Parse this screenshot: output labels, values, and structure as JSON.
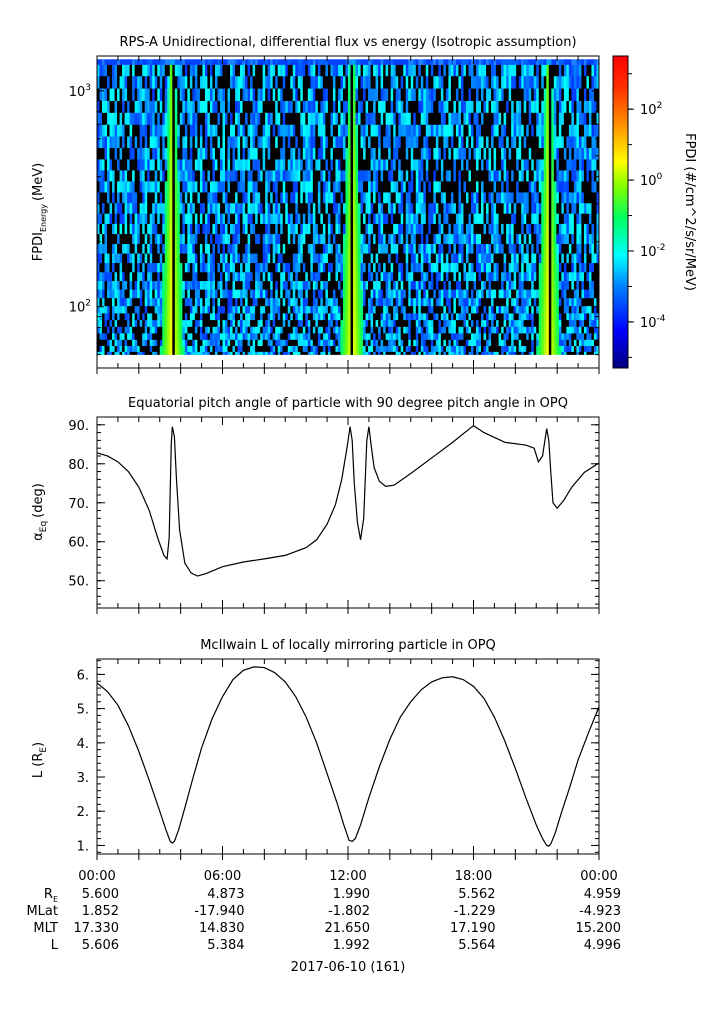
{
  "chart_data": [
    {
      "type": "heatmap",
      "title": "RPS-A Unidirectional, differential flux vs energy (Isotropic assumption)",
      "ylabel_main": "FPDI",
      "ylabel_sub": "Energy",
      "ylabel_unit": "(MeV)",
      "y_scale": "log",
      "ylim": [
        52,
        1450
      ],
      "yticks": [
        {
          "value": 100,
          "base": "10",
          "exp": "2"
        },
        {
          "value": 1000,
          "base": "10",
          "exp": "3"
        }
      ],
      "energy_channels_mev": [
        60,
        64,
        68,
        73,
        78,
        84,
        90,
        97,
        105,
        115,
        126,
        138,
        152,
        168,
        186,
        206,
        230,
        256,
        286,
        320,
        360,
        405,
        455,
        512,
        580,
        655,
        745,
        845,
        960,
        1100,
        1250,
        1400
      ],
      "xlim_hours": [
        0,
        24
      ],
      "hot_bands_hours": [
        3.6,
        12.2,
        21.6
      ],
      "colorbar": {
        "label": "FPDI (#/cm^2/s/sr/MeV)",
        "scale": "log",
        "range_exp": [
          -5.3,
          3.5
        ],
        "ticks": [
          {
            "base": "10",
            "exp": "2"
          },
          {
            "base": "10",
            "exp": "0"
          },
          {
            "base": "10",
            "exp": "-2"
          },
          {
            "base": "10",
            "exp": "-4"
          }
        ]
      }
    },
    {
      "type": "line",
      "title": "Equatorial pitch angle of particle with 90 degree pitch angle in OPQ",
      "ylabel_main": "α",
      "ylabel_sub": "Eq",
      "ylabel_unit": "(deg)",
      "ylim": [
        43,
        92
      ],
      "yticks": [
        "50.",
        "60.",
        "70.",
        "80.",
        "90."
      ],
      "xlim_hours": [
        0,
        24
      ],
      "series": [
        {
          "x": [
            0.0,
            0.5,
            1.0,
            1.5,
            2.0,
            2.5,
            2.9,
            3.2,
            3.35,
            3.45,
            3.55,
            3.6,
            3.7,
            3.8,
            3.95,
            4.2,
            4.5,
            4.8,
            5.2,
            6.0,
            7.0,
            8.0,
            9.0,
            10.0,
            10.5,
            11.0,
            11.4,
            11.7,
            11.95,
            12.1,
            12.2,
            12.3,
            12.45,
            12.6,
            12.75,
            12.9,
            13.0,
            13.1,
            13.25,
            13.5,
            13.8,
            14.2,
            15.0,
            16.0,
            17.0,
            18.0,
            18.5,
            19.5,
            20.5,
            20.9,
            21.1,
            21.3,
            21.5,
            21.6,
            21.7,
            21.8,
            22.0,
            22.3,
            22.7,
            23.3,
            24.0
          ],
          "y": [
            82.8,
            82.0,
            80.5,
            78.0,
            74.0,
            68.0,
            61.0,
            56.5,
            55.6,
            61.0,
            85.0,
            89.5,
            87.0,
            76.0,
            63.0,
            54.5,
            52.0,
            51.2,
            51.8,
            53.6,
            54.8,
            55.6,
            56.5,
            58.5,
            60.5,
            64.5,
            69.5,
            76.0,
            84.0,
            89.5,
            86.0,
            75.0,
            65.0,
            60.5,
            66.0,
            86.0,
            89.5,
            85.0,
            79.0,
            75.5,
            74.2,
            74.5,
            77.5,
            81.5,
            85.5,
            89.8,
            88.0,
            85.5,
            84.8,
            84.0,
            80.5,
            82.0,
            89.0,
            86.0,
            77.5,
            70.0,
            68.6,
            70.5,
            74.0,
            77.8,
            80.2
          ]
        }
      ]
    },
    {
      "type": "line",
      "title": "McIlwain L of locally mirroring particle in OPQ",
      "ylabel_main": "L (R",
      "ylabel_sub": "E",
      "ylabel_unit": ")",
      "ylim": [
        0.75,
        6.45
      ],
      "yticks": [
        "1.",
        "2.",
        "3.",
        "4.",
        "5.",
        "6."
      ],
      "xlim_hours": [
        0,
        24
      ],
      "series": [
        {
          "x": [
            0.0,
            0.5,
            1.0,
            1.5,
            2.0,
            2.5,
            3.0,
            3.3,
            3.5,
            3.6,
            3.7,
            3.9,
            4.2,
            4.6,
            5.0,
            5.5,
            6.0,
            6.5,
            7.0,
            7.5,
            8.0,
            8.5,
            9.0,
            9.5,
            10.0,
            10.5,
            11.0,
            11.5,
            11.8,
            12.05,
            12.2,
            12.35,
            12.6,
            13.0,
            13.5,
            14.0,
            14.5,
            15.0,
            15.5,
            16.0,
            16.5,
            17.0,
            17.5,
            18.0,
            18.5,
            19.0,
            19.5,
            20.0,
            20.5,
            21.0,
            21.3,
            21.5,
            21.6,
            21.7,
            21.9,
            22.2,
            22.6,
            23.0,
            23.5,
            24.0
          ],
          "y": [
            5.75,
            5.5,
            5.1,
            4.5,
            3.75,
            2.9,
            2.0,
            1.45,
            1.12,
            1.07,
            1.12,
            1.45,
            2.1,
            3.0,
            3.85,
            4.7,
            5.35,
            5.85,
            6.12,
            6.22,
            6.2,
            6.05,
            5.78,
            5.35,
            4.75,
            4.0,
            3.1,
            2.2,
            1.6,
            1.15,
            1.12,
            1.2,
            1.6,
            2.4,
            3.3,
            4.1,
            4.75,
            5.2,
            5.55,
            5.78,
            5.9,
            5.93,
            5.85,
            5.65,
            5.3,
            4.75,
            4.05,
            3.25,
            2.4,
            1.6,
            1.2,
            1.0,
            0.98,
            1.05,
            1.35,
            1.95,
            2.7,
            3.5,
            4.3,
            5.05
          ]
        }
      ]
    }
  ],
  "xaxis": {
    "tick_labels": [
      "00:00",
      "06:00",
      "12:00",
      "18:00",
      "00:00"
    ],
    "rows": [
      {
        "label_main": "R",
        "label_sub": "E",
        "values": [
          "5.600",
          "4.873",
          "1.990",
          "5.562",
          "4.959"
        ]
      },
      {
        "label_main": "MLat",
        "label_sub": "",
        "values": [
          "1.852",
          "-17.940",
          "-1.802",
          "-1.229",
          "-4.923"
        ]
      },
      {
        "label_main": "MLT",
        "label_sub": "",
        "values": [
          "17.330",
          "14.830",
          "21.650",
          "17.190",
          "15.200"
        ]
      },
      {
        "label_main": "L",
        "label_sub": "",
        "values": [
          "5.606",
          "5.384",
          "1.992",
          "5.564",
          "4.996"
        ]
      }
    ],
    "date_label": "2017-06-10 (161)"
  }
}
